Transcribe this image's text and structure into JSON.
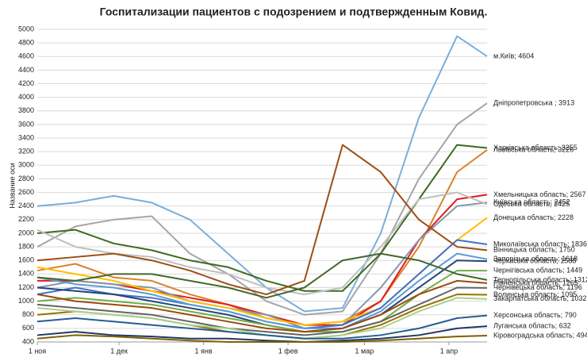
{
  "chart_data": {
    "type": "line",
    "title": "Госпитализации пациентов с подозрением и подтвержденным Ковид.",
    "y_label": "Название оси",
    "x": [
      0,
      14,
      28,
      42,
      56,
      70,
      84,
      98,
      112,
      126,
      140,
      154,
      165
    ],
    "xlim": [
      0,
      165
    ],
    "xticks": [
      {
        "value": 0,
        "label": "1 ноя"
      },
      {
        "value": 30,
        "label": "1 дек"
      },
      {
        "value": 61,
        "label": "1 янв"
      },
      {
        "value": 92,
        "label": "1 фев"
      },
      {
        "value": 120,
        "label": "1 мар"
      },
      {
        "value": 151,
        "label": "1 апр"
      }
    ],
    "ylim": [
      400,
      5000
    ],
    "yticks": [
      400,
      600,
      800,
      1000,
      1200,
      1400,
      1600,
      1800,
      2000,
      2200,
      2400,
      2600,
      2800,
      3000,
      3200,
      3400,
      3600,
      3800,
      4000,
      4200,
      4400,
      4600,
      4800,
      5000
    ],
    "grid": true,
    "series": [
      {
        "name": "м.Київ",
        "label": "м.Київ; 4604",
        "color": "#7aaedc",
        "values": [
          2400,
          2450,
          2550,
          2450,
          2200,
          1700,
          1200,
          850,
          900,
          2000,
          3700,
          4900,
          4604
        ]
      },
      {
        "name": "Дніпропетровська",
        "label": "Дніпропетровська ; 3913",
        "color": "#a5a5a5",
        "values": [
          1800,
          2100,
          2200,
          2250,
          1700,
          1400,
          1000,
          800,
          850,
          1700,
          2800,
          3600,
          3913
        ]
      },
      {
        "name": "Харківська область",
        "label": "Харківська область; 3255",
        "color": "#3e6b1f",
        "values": [
          2000,
          2050,
          1850,
          1750,
          1600,
          1500,
          1300,
          1150,
          1150,
          1700,
          2500,
          3300,
          3255
        ]
      },
      {
        "name": "Львівська область",
        "label": "Львівська область; 3226",
        "color": "#d9822b",
        "values": [
          1450,
          1550,
          1350,
          1300,
          1100,
          950,
          750,
          650,
          700,
          1000,
          1800,
          2900,
          3226
        ]
      },
      {
        "name": "Хмельницька область",
        "label": "Хмельницька область; 2567",
        "color": "#e41a1c",
        "values": [
          1300,
          1300,
          1250,
          1150,
          1050,
          950,
          800,
          650,
          650,
          1000,
          1900,
          2500,
          2567
        ]
      },
      {
        "name": "Київська область",
        "label": "Київська область; 2452",
        "color": "#8497b0",
        "values": [
          1200,
          1300,
          1250,
          1200,
          1000,
          900,
          800,
          600,
          650,
          1200,
          1900,
          2400,
          2452
        ]
      },
      {
        "name": "Одеська область",
        "label": "Одеська область; 2425",
        "color": "#bfbfbf",
        "values": [
          2050,
          1800,
          1700,
          1650,
          1500,
          1400,
          1200,
          1100,
          1200,
          1800,
          2500,
          2600,
          2425
        ]
      },
      {
        "name": "Донецька область",
        "label": "Донецька область; 2228",
        "color": "#ffc000",
        "values": [
          1500,
          1400,
          1300,
          1150,
          1000,
          900,
          750,
          650,
          700,
          900,
          1400,
          1900,
          2228
        ]
      },
      {
        "name": "Миколаївська область",
        "label": "Миколаївська область; 1836",
        "color": "#4472c4",
        "values": [
          1100,
          1200,
          1100,
          1050,
          950,
          850,
          700,
          600,
          650,
          900,
          1400,
          1900,
          1836
        ]
      },
      {
        "name": "Вінницька область",
        "label": "Вінницька область; 1750",
        "color": "#9c4e14",
        "values": [
          1600,
          1650,
          1700,
          1600,
          1450,
          1250,
          1100,
          1300,
          3300,
          2900,
          2200,
          1800,
          1750
        ]
      },
      {
        "name": "Запорізька область",
        "label": "Запорізька область; 1618",
        "color": "#5b9bd5",
        "values": [
          1350,
          1250,
          1200,
          1100,
          950,
          850,
          700,
          600,
          600,
          850,
          1300,
          1700,
          1618
        ]
      },
      {
        "name": "Черкаська область",
        "label": "Черкаська область; 1588",
        "color": "#264478",
        "values": [
          1200,
          1150,
          1100,
          1000,
          900,
          800,
          650,
          550,
          600,
          800,
          1200,
          1600,
          1588
        ]
      },
      {
        "name": "Чернігівська область",
        "label": "Чернігівська область; 1449",
        "color": "#70ad47",
        "values": [
          1000,
          1050,
          1000,
          950,
          850,
          750,
          650,
          550,
          550,
          700,
          1100,
          1450,
          1449
        ]
      },
      {
        "name": "Тернопільська область",
        "label": "Тернопільська область; 1312",
        "color": "#43682b",
        "values": [
          1350,
          1300,
          1400,
          1400,
          1300,
          1200,
          1050,
          1200,
          1600,
          1700,
          1600,
          1400,
          1312
        ]
      },
      {
        "name": "Рівненська область",
        "label": "Рівненська область; 1265",
        "color": "#9e480e",
        "values": [
          1100,
          1000,
          950,
          900,
          800,
          700,
          600,
          550,
          600,
          800,
          1100,
          1300,
          1265
        ]
      },
      {
        "name": "Чернівецька область",
        "label": "Чернівецька область; 1196",
        "color": "#636363",
        "values": [
          950,
          900,
          850,
          800,
          700,
          600,
          550,
          500,
          550,
          700,
          950,
          1200,
          1196
        ]
      },
      {
        "name": "Волинська область",
        "label": "Волинська область; 1095",
        "color": "#997300",
        "values": [
          800,
          850,
          800,
          750,
          650,
          550,
          500,
          450,
          500,
          650,
          900,
          1100,
          1095
        ]
      },
      {
        "name": "Закарпатська область",
        "label": "Закарпатська область; 1032",
        "color": "#a9d18e",
        "values": [
          900,
          850,
          800,
          750,
          650,
          600,
          500,
          450,
          500,
          600,
          850,
          1050,
          1032
        ]
      },
      {
        "name": "Херсонська область",
        "label": "Херсонська область; 790",
        "color": "#255e91",
        "values": [
          700,
          750,
          700,
          650,
          600,
          550,
          500,
          450,
          450,
          500,
          600,
          750,
          790
        ]
      },
      {
        "name": "Луганська область",
        "label": "Луганська область; 632",
        "color": "#203864",
        "values": [
          500,
          550,
          500,
          480,
          450,
          450,
          420,
          400,
          420,
          450,
          500,
          600,
          632
        ]
      },
      {
        "name": "Кіровоградська область",
        "label": "Кіровоградська область; 494",
        "color": "#7f6000",
        "values": [
          450,
          500,
          480,
          450,
          420,
          400,
          400,
          400,
          400,
          420,
          450,
          480,
          494
        ]
      }
    ]
  }
}
